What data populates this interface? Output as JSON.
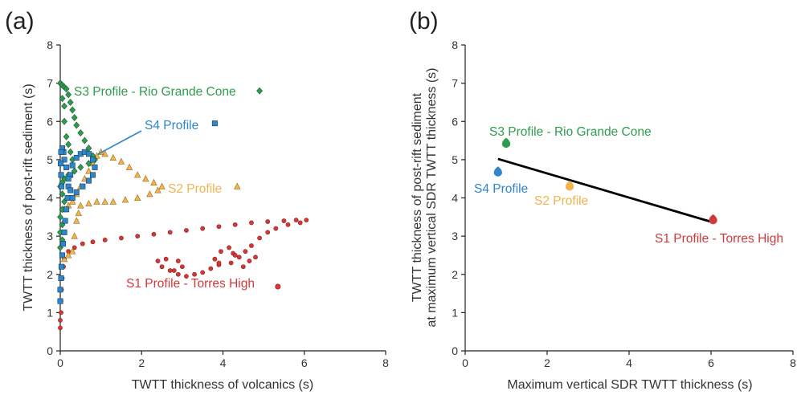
{
  "colors": {
    "s1": "#d03a3a",
    "s1_edge": "#8f1f1f",
    "s2": "#f2b350",
    "s2_edge": "#9a6c18",
    "s3": "#2e9c4e",
    "s3_edge": "#1f5a2e",
    "s4": "#2f86c8",
    "s4_edge": "#153d66",
    "trend": "#000000",
    "axis": "#222222"
  },
  "chart_data": [
    {
      "panel": "(a)",
      "type": "scatter",
      "xlabel": "TWTT thickness of volcanics (s)",
      "ylabel": "TWTT thickness of post-rift sediment (s)",
      "xlim": [
        0,
        8
      ],
      "ylim": [
        0,
        8
      ],
      "x_ticks": [
        "0",
        "2",
        "4",
        "6",
        "8"
      ],
      "y_ticks": [
        "0",
        "1",
        "2",
        "3",
        "4",
        "5",
        "6",
        "7",
        "8"
      ],
      "grid": false,
      "series": [
        {
          "key": "s1",
          "name": "S1 Profile - Torres High",
          "marker": "circle",
          "points": [
            [
              0,
              0.6
            ],
            [
              0,
              0.8
            ],
            [
              0.02,
              1.0
            ],
            [
              0.02,
              1.3
            ],
            [
              0.03,
              1.6
            ],
            [
              0.05,
              1.9
            ],
            [
              0.08,
              2.2
            ],
            [
              0.1,
              2.4
            ],
            [
              0.2,
              2.6
            ],
            [
              0.35,
              2.7
            ],
            [
              0.55,
              2.8
            ],
            [
              0.8,
              2.85
            ],
            [
              1.1,
              2.9
            ],
            [
              1.5,
              2.95
            ],
            [
              1.9,
              3.0
            ],
            [
              2.3,
              3.05
            ],
            [
              2.7,
              3.1
            ],
            [
              3.1,
              3.15
            ],
            [
              3.5,
              3.2
            ],
            [
              3.9,
              3.25
            ],
            [
              4.3,
              3.3
            ],
            [
              4.7,
              3.35
            ],
            [
              5.1,
              3.38
            ],
            [
              5.5,
              3.4
            ],
            [
              5.8,
              3.42
            ],
            [
              6.05,
              3.42
            ],
            [
              5.9,
              3.35
            ],
            [
              5.6,
              3.3
            ],
            [
              5.3,
              3.2
            ],
            [
              5.1,
              3.1
            ],
            [
              4.9,
              2.95
            ],
            [
              4.7,
              2.75
            ],
            [
              4.55,
              2.6
            ],
            [
              4.4,
              2.45
            ],
            [
              4.25,
              2.55
            ],
            [
              4.15,
              2.7
            ],
            [
              3.95,
              2.6
            ],
            [
              3.8,
              2.4
            ],
            [
              3.9,
              2.25
            ],
            [
              4.2,
              2.3
            ],
            [
              4.5,
              2.2
            ],
            [
              4.65,
              2.35
            ],
            [
              4.8,
              2.45
            ],
            [
              4.3,
              2.5
            ],
            [
              3.9,
              2.3
            ],
            [
              3.7,
              2.15
            ],
            [
              3.5,
              2.05
            ],
            [
              3.3,
              2.0
            ],
            [
              3.1,
              1.95
            ],
            [
              2.9,
              2.0
            ],
            [
              2.7,
              2.1
            ],
            [
              2.5,
              2.2
            ],
            [
              2.4,
              2.35
            ],
            [
              2.6,
              2.4
            ],
            [
              2.9,
              2.35
            ],
            [
              3.0,
              2.2
            ],
            [
              2.8,
              2.1
            ]
          ]
        },
        {
          "key": "s2",
          "name": "S2 Profile",
          "marker": "triangle",
          "points": [
            [
              0.1,
              2.4
            ],
            [
              0.2,
              2.5
            ],
            [
              0.3,
              2.6
            ],
            [
              0.35,
              3.0
            ],
            [
              0.4,
              3.4
            ],
            [
              0.45,
              3.6
            ],
            [
              0.5,
              3.8
            ],
            [
              0.7,
              3.85
            ],
            [
              0.9,
              3.9
            ],
            [
              1.1,
              3.9
            ],
            [
              1.3,
              3.9
            ],
            [
              1.6,
              3.95
            ],
            [
              1.9,
              4.0
            ],
            [
              2.2,
              4.1
            ],
            [
              2.4,
              4.2
            ],
            [
              2.5,
              4.3
            ],
            [
              2.3,
              4.4
            ],
            [
              2.1,
              4.5
            ],
            [
              1.9,
              4.6
            ],
            [
              1.7,
              4.8
            ],
            [
              1.5,
              4.95
            ],
            [
              1.3,
              5.05
            ],
            [
              1.1,
              5.15
            ],
            [
              1.0,
              5.2
            ],
            [
              0.9,
              5.1
            ],
            [
              0.8,
              4.9
            ],
            [
              0.7,
              4.7
            ],
            [
              0.6,
              4.5
            ],
            [
              0.5,
              4.3
            ],
            [
              0.4,
              4.1
            ],
            [
              0.3,
              3.9
            ],
            [
              0.2,
              3.8
            ],
            [
              0.1,
              3.7
            ]
          ]
        },
        {
          "key": "s3",
          "name": "S3 Profile - Rio Grande Cone",
          "marker": "diamond",
          "points": [
            [
              0,
              7.0
            ],
            [
              0.05,
              6.95
            ],
            [
              0.1,
              6.9
            ],
            [
              0.15,
              6.85
            ],
            [
              0.2,
              6.7
            ],
            [
              0.25,
              6.5
            ],
            [
              0.3,
              6.3
            ],
            [
              0.35,
              6.1
            ],
            [
              0.4,
              5.9
            ],
            [
              0.5,
              5.7
            ],
            [
              0.6,
              5.5
            ],
            [
              0.7,
              5.3
            ],
            [
              0.8,
              5.1
            ],
            [
              0.85,
              5.0
            ],
            [
              0.7,
              4.9
            ],
            [
              0.5,
              4.8
            ],
            [
              0.35,
              4.7
            ],
            [
              0.2,
              4.6
            ],
            [
              0.1,
              4.5
            ],
            [
              0.05,
              4.4
            ],
            [
              0,
              4.3
            ],
            [
              0.05,
              4.1
            ],
            [
              0.1,
              3.9
            ],
            [
              0.05,
              3.7
            ],
            [
              0,
              3.5
            ],
            [
              0.05,
              3.3
            ],
            [
              0,
              3.1
            ],
            [
              0.05,
              2.9
            ],
            [
              0,
              2.7
            ],
            [
              0.1,
              6.0
            ],
            [
              0.15,
              5.6
            ],
            [
              0.2,
              5.4
            ],
            [
              0.25,
              5.2
            ],
            [
              0.3,
              5.0
            ],
            [
              0.1,
              6.4
            ],
            [
              0.05,
              6.6
            ]
          ]
        },
        {
          "key": "s4",
          "name": "S4 Profile",
          "marker": "square",
          "points": [
            [
              0,
              1.3
            ],
            [
              0,
              1.6
            ],
            [
              0.02,
              1.9
            ],
            [
              0.03,
              2.2
            ],
            [
              0.05,
              2.5
            ],
            [
              0.07,
              2.8
            ],
            [
              0.1,
              3.1
            ],
            [
              0.12,
              3.4
            ],
            [
              0.15,
              3.7
            ],
            [
              0.18,
              4.0
            ],
            [
              0.2,
              4.3
            ],
            [
              0.25,
              4.6
            ],
            [
              0.3,
              4.85
            ],
            [
              0.4,
              5.05
            ],
            [
              0.5,
              5.15
            ],
            [
              0.6,
              5.2
            ],
            [
              0.7,
              5.15
            ],
            [
              0.8,
              5.0
            ],
            [
              0.85,
              4.8
            ],
            [
              0.8,
              4.6
            ],
            [
              0.7,
              4.45
            ],
            [
              0.55,
              4.3
            ],
            [
              0.4,
              4.15
            ],
            [
              0.3,
              4.0
            ],
            [
              0.25,
              4.2
            ],
            [
              0.2,
              4.5
            ],
            [
              0.15,
              4.8
            ],
            [
              0.1,
              5.0
            ],
            [
              0.08,
              5.2
            ],
            [
              0.05,
              5.3
            ],
            [
              0.02,
              5.2
            ],
            [
              0.01,
              4.9
            ],
            [
              0.02,
              4.6
            ],
            [
              0.03,
              4.3
            ]
          ]
        }
      ],
      "outliers": [
        {
          "key": "s1",
          "x": 5.35,
          "y": 1.68
        },
        {
          "key": "s2",
          "x": 4.35,
          "y": 4.3
        },
        {
          "key": "s3",
          "x": 4.9,
          "y": 6.8
        },
        {
          "key": "s4",
          "x": 3.8,
          "y": 5.95
        }
      ],
      "annotations": [
        {
          "key": "s3",
          "text": "S3 Profile - Rio Grande Cone"
        },
        {
          "key": "s4",
          "text": "S4 Profile"
        },
        {
          "key": "s2",
          "text": "S2 Profile"
        },
        {
          "key": "s1",
          "text": "S1 Profile - Torres High"
        }
      ]
    },
    {
      "panel": "(b)",
      "type": "scatter",
      "xlabel": "Maximum vertical SDR TWTT thickness (s)",
      "ylabel_lines": [
        "TWTT thickness of post-rift sediment",
        "at maximum vertical SDR TWTT thickness (s)"
      ],
      "xlim": [
        0,
        8
      ],
      "ylim": [
        0,
        8
      ],
      "x_ticks": [
        "0",
        "2",
        "4",
        "6",
        "8"
      ],
      "y_ticks": [
        "0",
        "1",
        "2",
        "3",
        "4",
        "5",
        "6",
        "7",
        "8"
      ],
      "grid": false,
      "points": [
        {
          "key": "s3",
          "label": "S3 Profile - Rio Grande Cone",
          "x": 1.0,
          "y": 5.42
        },
        {
          "key": "s4",
          "label": "S4 Profile",
          "x": 0.8,
          "y": 4.67
        },
        {
          "key": "s2",
          "label": "S2 Profile",
          "x": 2.55,
          "y": 4.3
        },
        {
          "key": "s1",
          "label": "S1 Profile - Torres High",
          "x": 6.05,
          "y": 3.42
        }
      ],
      "trendline": {
        "x": [
          0.8,
          6.05
        ],
        "y": [
          5.02,
          3.36
        ]
      }
    }
  ]
}
